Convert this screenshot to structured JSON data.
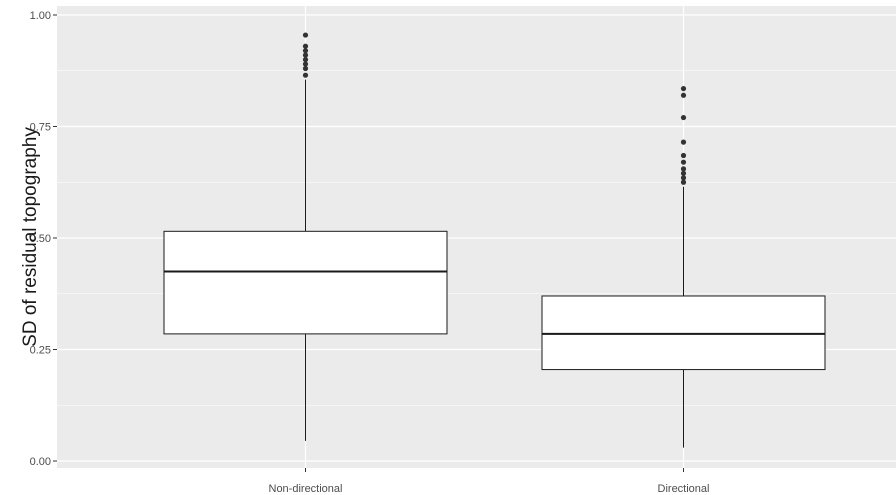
{
  "chart_data": {
    "type": "boxplot",
    "title": "",
    "xlabel": "",
    "ylabel": "SD of residual topography",
    "ylim": [
      0.0,
      1.0
    ],
    "yticks": [
      0.0,
      0.25,
      0.5,
      0.75,
      1.0
    ],
    "ytick_labels": [
      "0.00",
      "0.25",
      "0.50",
      "0.75",
      "1.00"
    ],
    "grid": true,
    "colors": {
      "panel": "#ebebeb",
      "gridline": "#ffffff",
      "box_fill": "#ffffff",
      "stroke": "#1a1a1a",
      "outlier": "#333333"
    },
    "categories": [
      "Non-directional",
      "Directional"
    ],
    "boxes": [
      {
        "category": "Non-directional",
        "whisker_low": 0.045,
        "q1": 0.285,
        "median": 0.425,
        "q3": 0.515,
        "whisker_high": 0.855,
        "outliers": [
          0.865,
          0.88,
          0.89,
          0.9,
          0.91,
          0.92,
          0.93,
          0.955
        ]
      },
      {
        "category": "Directional",
        "whisker_low": 0.03,
        "q1": 0.205,
        "median": 0.285,
        "q3": 0.37,
        "whisker_high": 0.615,
        "outliers": [
          0.625,
          0.635,
          0.645,
          0.655,
          0.67,
          0.685,
          0.715,
          0.77,
          0.82,
          0.835
        ]
      }
    ]
  }
}
